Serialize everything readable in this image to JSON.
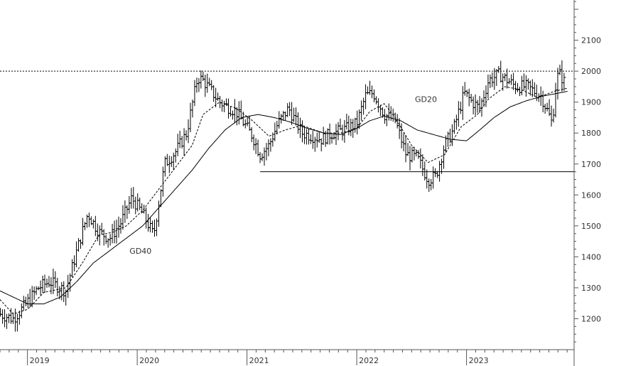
{
  "chart_data": {
    "type": "bar",
    "subtype": "ohlc-weekly",
    "title": "",
    "xlabel": "",
    "ylabel": "",
    "ylim": [
      1100,
      2230
    ],
    "xlim": [
      2018.75,
      2023.98
    ],
    "y_ticks": [
      1200,
      1300,
      1400,
      1500,
      1600,
      1700,
      1800,
      1900,
      2000,
      2100
    ],
    "x_ticks": [
      {
        "x": 2019,
        "label": "2019"
      },
      {
        "x": 2020,
        "label": "2020"
      },
      {
        "x": 2021,
        "label": "2021"
      },
      {
        "x": 2022,
        "label": "2022"
      },
      {
        "x": 2023,
        "label": "2023"
      }
    ],
    "grid": false,
    "price_anchors": [
      [
        2018.75,
        1215
      ],
      [
        2018.87,
        1200
      ],
      [
        2018.97,
        1240
      ],
      [
        2019.1,
        1300
      ],
      [
        2019.2,
        1320
      ],
      [
        2019.35,
        1290
      ],
      [
        2019.45,
        1420
      ],
      [
        2019.55,
        1540
      ],
      [
        2019.65,
        1480
      ],
      [
        2019.75,
        1460
      ],
      [
        2019.85,
        1510
      ],
      [
        2019.95,
        1590
      ],
      [
        2020.05,
        1540
      ],
      [
        2020.15,
        1470
      ],
      [
        2020.25,
        1700
      ],
      [
        2020.35,
        1740
      ],
      [
        2020.45,
        1800
      ],
      [
        2020.55,
        1980
      ],
      [
        2020.6,
        1970
      ],
      [
        2020.75,
        1900
      ],
      [
        2020.9,
        1870
      ],
      [
        2021.05,
        1790
      ],
      [
        2021.12,
        1730
      ],
      [
        2021.2,
        1760
      ],
      [
        2021.28,
        1830
      ],
      [
        2021.38,
        1880
      ],
      [
        2021.5,
        1800
      ],
      [
        2021.6,
        1790
      ],
      [
        2021.68,
        1780
      ],
      [
        2021.78,
        1800
      ],
      [
        2021.88,
        1810
      ],
      [
        2022.0,
        1830
      ],
      [
        2022.08,
        1920
      ],
      [
        2022.15,
        1930
      ],
      [
        2022.25,
        1860
      ],
      [
        2022.35,
        1840
      ],
      [
        2022.45,
        1730
      ],
      [
        2022.55,
        1720
      ],
      [
        2022.65,
        1650
      ],
      [
        2022.72,
        1660
      ],
      [
        2022.8,
        1760
      ],
      [
        2022.88,
        1810
      ],
      [
        2022.98,
        1930
      ],
      [
        2023.05,
        1900
      ],
      [
        2023.12,
        1880
      ],
      [
        2023.2,
        1970
      ],
      [
        2023.3,
        1990
      ],
      [
        2023.45,
        1950
      ],
      [
        2023.55,
        1950
      ],
      [
        2023.68,
        1920
      ],
      [
        2023.75,
        1860
      ],
      [
        2023.78,
        1830
      ],
      [
        2023.82,
        1980
      ],
      [
        2023.85,
        1990
      ],
      [
        2023.9,
        1960
      ]
    ],
    "gd20_anchors": [
      [
        2018.75,
        1262
      ],
      [
        2018.87,
        1215
      ],
      [
        2019.0,
        1230
      ],
      [
        2019.15,
        1285
      ],
      [
        2019.35,
        1300
      ],
      [
        2019.5,
        1380
      ],
      [
        2019.65,
        1470
      ],
      [
        2019.78,
        1480
      ],
      [
        2019.9,
        1500
      ],
      [
        2020.05,
        1550
      ],
      [
        2020.2,
        1620
      ],
      [
        2020.35,
        1690
      ],
      [
        2020.5,
        1760
      ],
      [
        2020.6,
        1860
      ],
      [
        2020.75,
        1900
      ],
      [
        2020.9,
        1880
      ],
      [
        2021.05,
        1840
      ],
      [
        2021.2,
        1790
      ],
      [
        2021.35,
        1810
      ],
      [
        2021.5,
        1825
      ],
      [
        2021.7,
        1800
      ],
      [
        2021.85,
        1800
      ],
      [
        2022.0,
        1815
      ],
      [
        2022.12,
        1870
      ],
      [
        2022.25,
        1895
      ],
      [
        2022.35,
        1850
      ],
      [
        2022.5,
        1760
      ],
      [
        2022.65,
        1705
      ],
      [
        2022.8,
        1730
      ],
      [
        2022.95,
        1820
      ],
      [
        2023.1,
        1860
      ],
      [
        2023.2,
        1910
      ],
      [
        2023.35,
        1950
      ],
      [
        2023.5,
        1940
      ],
      [
        2023.65,
        1915
      ],
      [
        2023.8,
        1935
      ],
      [
        2023.92,
        1945
      ]
    ],
    "gd40_anchors": [
      [
        2018.75,
        1290
      ],
      [
        2018.9,
        1265
      ],
      [
        2019.0,
        1248
      ],
      [
        2019.15,
        1248
      ],
      [
        2019.3,
        1270
      ],
      [
        2019.45,
        1320
      ],
      [
        2019.6,
        1380
      ],
      [
        2019.75,
        1420
      ],
      [
        2019.9,
        1460
      ],
      [
        2020.05,
        1500
      ],
      [
        2020.2,
        1560
      ],
      [
        2020.35,
        1620
      ],
      [
        2020.5,
        1680
      ],
      [
        2020.65,
        1750
      ],
      [
        2020.8,
        1810
      ],
      [
        2020.95,
        1850
      ],
      [
        2021.1,
        1860
      ],
      [
        2021.25,
        1850
      ],
      [
        2021.4,
        1835
      ],
      [
        2021.55,
        1815
      ],
      [
        2021.7,
        1800
      ],
      [
        2021.85,
        1795
      ],
      [
        2022.0,
        1815
      ],
      [
        2022.12,
        1840
      ],
      [
        2022.25,
        1855
      ],
      [
        2022.4,
        1840
      ],
      [
        2022.55,
        1810
      ],
      [
        2022.7,
        1795
      ],
      [
        2022.85,
        1780
      ],
      [
        2023.0,
        1775
      ],
      [
        2023.12,
        1810
      ],
      [
        2023.25,
        1850
      ],
      [
        2023.4,
        1885
      ],
      [
        2023.55,
        1905
      ],
      [
        2023.7,
        1920
      ],
      [
        2023.85,
        1930
      ],
      [
        2023.92,
        1935
      ]
    ],
    "resistance_level": 2000,
    "support": {
      "from_x": 2021.12,
      "to_x": 2023.98,
      "y": 1675
    },
    "labels": [
      {
        "text": "GD20",
        "x": 2022.53,
        "y": 1900
      },
      {
        "text": "GD40",
        "x": 2019.93,
        "y": 1410
      }
    ],
    "colors": {
      "line": "#000000",
      "axis": "#555555",
      "text": "#333333",
      "background": "#ffffff"
    }
  }
}
